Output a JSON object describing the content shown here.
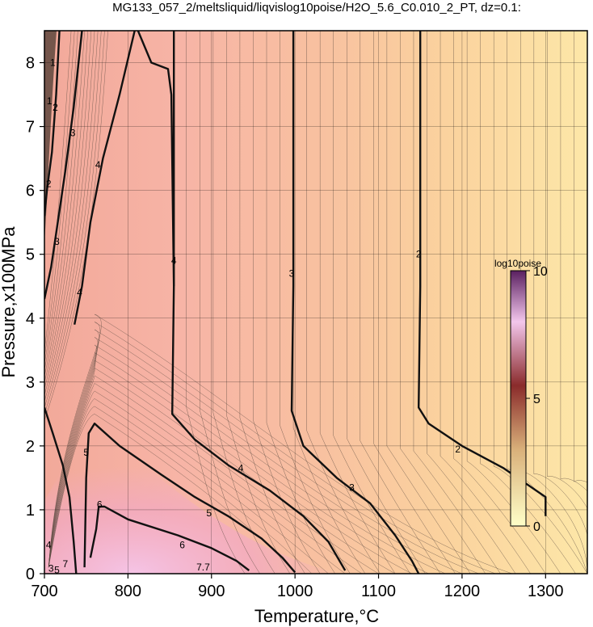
{
  "chart_data": {
    "type": "heatmap",
    "title": "MG133_057_2/meltsliquid/liqvislog10poise/H2O_5.6_C0.010_2_PT, dz=0.1:",
    "xlabel": "Temperature,°C",
    "ylabel": "Pressure,x100MPa",
    "xlim": [
      700,
      1350
    ],
    "ylim": [
      0,
      8.5
    ],
    "x_ticks": [
      700,
      800,
      900,
      1000,
      1100,
      1200,
      1300
    ],
    "y_ticks": [
      0,
      1,
      2,
      3,
      4,
      5,
      6,
      7,
      8
    ],
    "grid": true,
    "colorbar": {
      "title": "log10poise",
      "ticks": [
        0,
        5,
        10
      ],
      "range": [
        0,
        10
      ],
      "colors": [
        "#ffffc8",
        "#d9b07a",
        "#8a2b2b",
        "#e8a8d8",
        "#5a2060"
      ]
    },
    "major_contours": [
      {
        "level": 2,
        "points": [
          [
            1150,
            8.5
          ],
          [
            1150,
            4.5
          ],
          [
            1148,
            2.6
          ],
          [
            1160,
            2.35
          ],
          [
            1200,
            2.0
          ],
          [
            1250,
            1.65
          ],
          [
            1300,
            1.2
          ],
          [
            1300,
            0.9
          ]
        ]
      },
      {
        "level": 3,
        "points": [
          [
            998,
            8.5
          ],
          [
            998,
            4.5
          ],
          [
            996,
            2.55
          ],
          [
            1010,
            2.0
          ],
          [
            1050,
            1.5
          ],
          [
            1090,
            1.1
          ],
          [
            1120,
            0.6
          ],
          [
            1140,
            0.2
          ],
          [
            1148,
            0
          ]
        ]
      },
      {
        "level": 4,
        "points": [
          [
            855,
            8.5
          ],
          [
            855,
            4.5
          ],
          [
            853,
            2.5
          ],
          [
            880,
            2.1
          ],
          [
            920,
            1.7
          ],
          [
            970,
            1.3
          ],
          [
            1010,
            0.9
          ],
          [
            1040,
            0.5
          ],
          [
            1060,
            0.05
          ]
        ]
      },
      {
        "level": 4,
        "points": [
          [
            812,
            8.5
          ],
          [
            828,
            8.0
          ],
          [
            848,
            7.9
          ],
          [
            852,
            7.5
          ],
          [
            855,
            4.5
          ]
        ]
      },
      {
        "level": 4,
        "points": [
          [
            808,
            8.5
          ],
          [
            790,
            7.5
          ],
          [
            770,
            6.5
          ],
          [
            755,
            5.5
          ],
          [
            745,
            4.5
          ],
          [
            736,
            3.9
          ]
        ]
      },
      {
        "level": 5,
        "points": [
          [
            748,
            0.1
          ],
          [
            750,
            1.5
          ],
          [
            753,
            2.2
          ],
          [
            760,
            2.35
          ],
          [
            790,
            2.0
          ],
          [
            840,
            1.55
          ],
          [
            880,
            1.2
          ],
          [
            920,
            0.9
          ],
          [
            960,
            0.55
          ],
          [
            985,
            0.25
          ],
          [
            1000,
            0.02
          ]
        ]
      },
      {
        "level": 6,
        "points": [
          [
            755,
            0.25
          ],
          [
            762,
            0.7
          ],
          [
            765,
            1.05
          ],
          [
            772,
            1.05
          ],
          [
            800,
            0.85
          ],
          [
            860,
            0.6
          ],
          [
            900,
            0.4
          ],
          [
            930,
            0.2
          ],
          [
            945,
            0.05
          ]
        ]
      },
      {
        "level": 3,
        "points": [
          [
            745,
            8.5
          ],
          [
            735,
            7.3
          ],
          [
            725,
            6.3
          ],
          [
            716,
            5.5
          ],
          [
            708,
            4.8
          ],
          [
            700,
            4.3
          ]
        ]
      },
      {
        "level": 2,
        "points": [
          [
            718,
            8.5
          ],
          [
            714,
            7.5
          ],
          [
            709,
            6.6
          ],
          [
            703,
            6.0
          ],
          [
            700,
            5.6
          ]
        ]
      },
      {
        "level": 4,
        "points": [
          [
            700,
            2.6
          ],
          [
            710,
            2.2
          ],
          [
            722,
            1.7
          ],
          [
            730,
            1.2
          ],
          [
            735,
            0.5
          ],
          [
            738,
            0
          ]
        ]
      }
    ],
    "contour_labels": [
      {
        "text": "2",
        "x": 1148,
        "y": 5.0
      },
      {
        "text": "3",
        "x": 996,
        "y": 4.7
      },
      {
        "text": "4",
        "x": 855,
        "y": 4.9
      },
      {
        "text": "2",
        "x": 1195,
        "y": 1.95
      },
      {
        "text": "3",
        "x": 1068,
        "y": 1.35
      },
      {
        "text": "4",
        "x": 935,
        "y": 1.65
      },
      {
        "text": "5",
        "x": 897,
        "y": 0.95
      },
      {
        "text": "6",
        "x": 865,
        "y": 0.45
      },
      {
        "text": "5",
        "x": 750,
        "y": 1.9
      },
      {
        "text": "6",
        "x": 766,
        "y": 1.08
      },
      {
        "text": "4",
        "x": 764,
        "y": 6.4
      },
      {
        "text": "4",
        "x": 742,
        "y": 4.4
      },
      {
        "text": "3",
        "x": 734,
        "y": 6.9
      },
      {
        "text": "3",
        "x": 715,
        "y": 5.2
      },
      {
        "text": "2",
        "x": 705,
        "y": 6.1
      },
      {
        "text": "2",
        "x": 713,
        "y": 7.3
      },
      {
        "text": "1",
        "x": 706,
        "y": 7.4
      },
      {
        "text": "1",
        "x": 710,
        "y": 8.0
      },
      {
        "text": "4",
        "x": 705,
        "y": 0.45
      },
      {
        "text": "3",
        "x": 708,
        "y": 0.08
      },
      {
        "text": "5",
        "x": 715,
        "y": 0.06
      },
      {
        "text": "7",
        "x": 725,
        "y": 0.15
      },
      {
        "text": "7.7",
        "x": 890,
        "y": 0.1
      }
    ]
  }
}
